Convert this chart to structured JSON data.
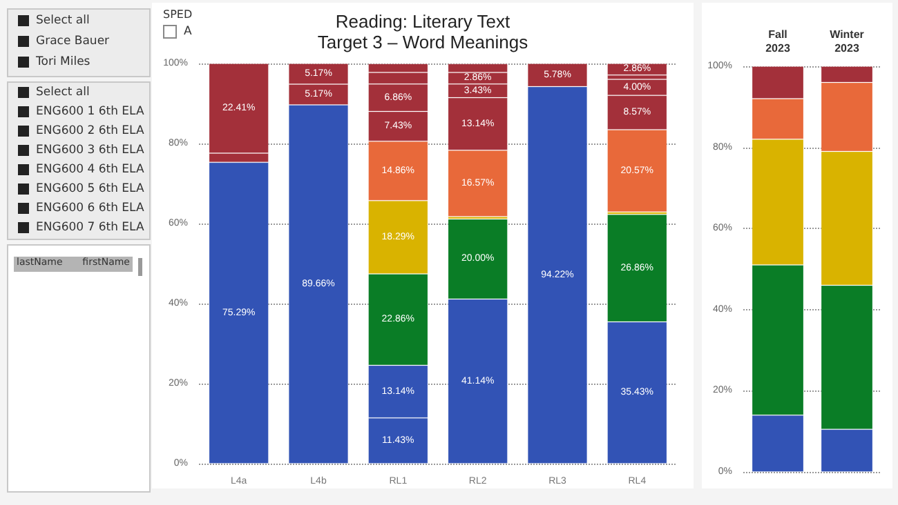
{
  "chart_data": [
    {
      "type": "other",
      "annotations": [
        "Select all",
        "Grace Bauer",
        "Tori Miles",
        "Select all",
        "ENG600 1 6th ELA",
        "ENG600 2 6th ELA",
        "ENG600 3 6th ELA",
        "ENG600 4 6th ELA",
        "ENG600 5 6th ELA",
        "ENG600 6 6th ELA",
        "ENG600 7 6th ELA",
        "lastName",
        "firstName",
        "SPED",
        "A"
      ]
    },
    {
      "type": "bar",
      "stacked": true,
      "title": "Reading: Literary Text",
      "subtitle": "Target 3 – Word Meanings",
      "categories": [
        "L4a",
        "L4b",
        "RL1",
        "RL2",
        "RL3",
        "RL4"
      ],
      "ylim": [
        0,
        100
      ],
      "yticks": [
        {
          "value": 0,
          "label": "0%"
        },
        {
          "value": 20,
          "label": "20%"
        },
        {
          "value": 40,
          "label": "40%"
        },
        {
          "value": 60,
          "label": "60%"
        },
        {
          "value": 80,
          "label": "80%"
        },
        {
          "value": 100,
          "label": "100%"
        }
      ],
      "grid": "y",
      "series": [
        {
          "color": "#3253b5",
          "values": [
            75.29,
            89.66,
            11.43,
            41.14,
            94.22,
            35.43
          ],
          "value_labels": [
            "75.29%",
            "89.66%",
            "11.43%",
            "41.14%",
            "94.22%",
            "35.43%"
          ]
        },
        {
          "color": "#3253b5",
          "values": [
            null,
            null,
            13.14,
            null,
            null,
            null
          ],
          "value_labels": [
            null,
            null,
            "13.14%",
            null,
            null,
            null
          ]
        },
        {
          "color": "#0a7d26",
          "values": [
            null,
            null,
            22.86,
            20.0,
            null,
            26.86
          ],
          "value_labels": [
            null,
            null,
            "22.86%",
            "20.00%",
            null,
            "26.86%"
          ]
        },
        {
          "color": "#d9b300",
          "values": [
            null,
            null,
            18.29,
            0.6,
            null,
            0.6
          ],
          "value_labels": [
            null,
            null,
            "18.29%",
            null,
            null,
            null
          ]
        },
        {
          "color": "#e8693a",
          "values": [
            null,
            null,
            14.86,
            16.57,
            null,
            20.57
          ],
          "value_labels": [
            null,
            null,
            "14.86%",
            "16.57%",
            null,
            "20.57%"
          ]
        },
        {
          "color": "#a3303a",
          "values": [
            2.3,
            5.17,
            7.43,
            13.14,
            5.78,
            8.57
          ],
          "value_labels": [
            null,
            "5.17%",
            "7.43%",
            "13.14%",
            "5.78%",
            "8.57%"
          ]
        },
        {
          "color": "#a3303a",
          "values": [
            22.41,
            5.17,
            6.86,
            3.43,
            null,
            4.0
          ],
          "value_labels": [
            "22.41%",
            "5.17%",
            "6.86%",
            "3.43%",
            null,
            "4.00%"
          ]
        },
        {
          "color": "#a3303a",
          "values": [
            null,
            null,
            2.9,
            2.86,
            null,
            1.1
          ],
          "value_labels": [
            null,
            null,
            null,
            "2.86%",
            null,
            null
          ]
        },
        {
          "color": "#a3303a",
          "values": [
            null,
            null,
            2.2,
            2.2,
            null,
            2.86
          ],
          "value_labels": [
            null,
            null,
            null,
            null,
            null,
            "2.86%"
          ]
        }
      ]
    },
    {
      "type": "bar",
      "stacked": true,
      "categories": [
        "Fall 2023",
        "Winter 2023"
      ],
      "ylim": [
        0,
        100
      ],
      "yticks": [
        {
          "value": 0,
          "label": "0%"
        },
        {
          "value": 20,
          "label": "20%"
        },
        {
          "value": 40,
          "label": "40%"
        },
        {
          "value": 60,
          "label": "60%"
        },
        {
          "value": 80,
          "label": "80%"
        },
        {
          "value": 100,
          "label": "100%"
        }
      ],
      "grid": "y",
      "series": [
        {
          "color": "#3253b5",
          "values": [
            14,
            10.5
          ]
        },
        {
          "color": "#0a7d26",
          "values": [
            37,
            35.5
          ]
        },
        {
          "color": "#d9b300",
          "values": [
            31,
            33
          ]
        },
        {
          "color": "#e8693a",
          "values": [
            10,
            17
          ]
        },
        {
          "color": "#a3303a",
          "values": [
            8,
            4
          ]
        }
      ]
    }
  ]
}
